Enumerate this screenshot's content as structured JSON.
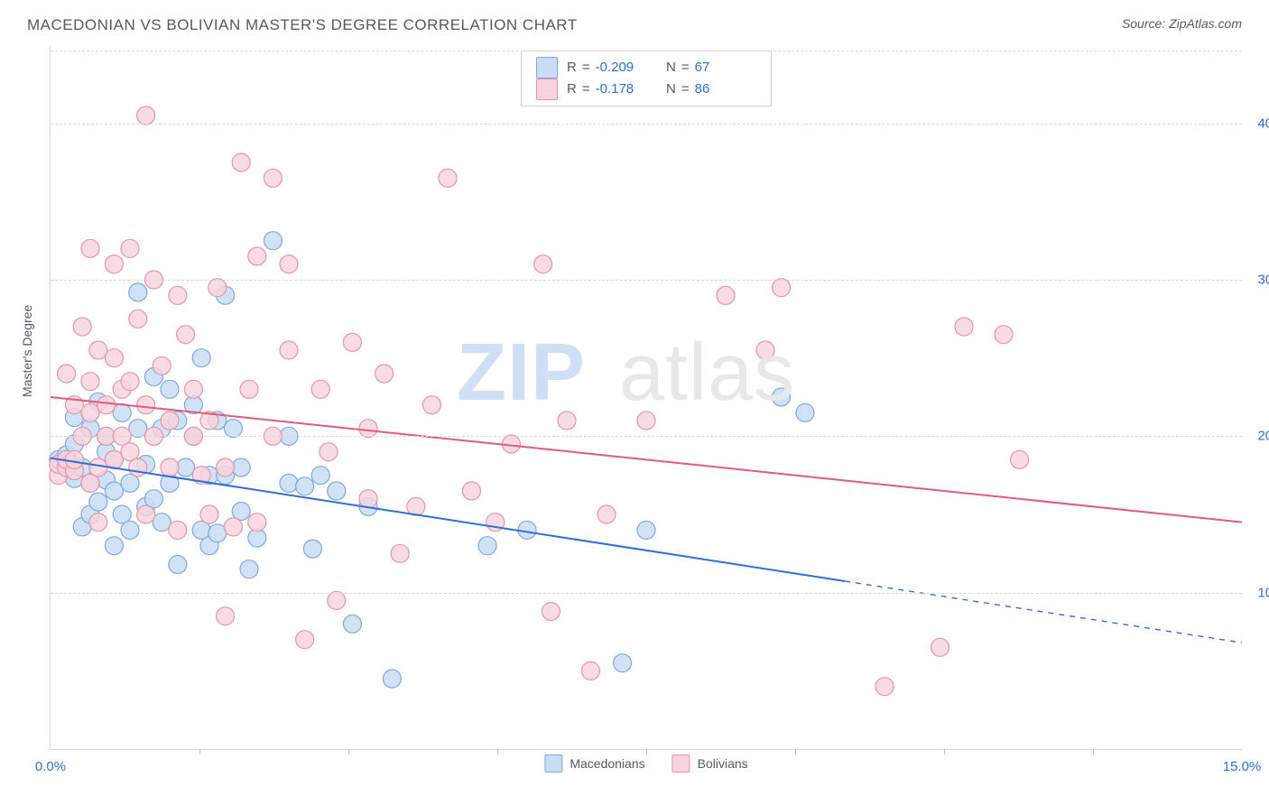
{
  "header": {
    "title": "MACEDONIAN VS BOLIVIAN MASTER'S DEGREE CORRELATION CHART",
    "source_label": "Source: ZipAtlas.com"
  },
  "watermark": {
    "left": "ZIP",
    "right": "atlas"
  },
  "chart": {
    "type": "scatter",
    "ylabel": "Master's Degree",
    "background_color": "#ffffff",
    "grid_color": "#d8d8d8",
    "axis_color": "#d8d8d8",
    "tick_color": "#c0c0c0",
    "axis_value_color": "#2e6fd6",
    "text_color": "#555a60",
    "xlim": [
      0,
      15
    ],
    "ylim": [
      0,
      45
    ],
    "xticks_major": [
      0,
      15
    ],
    "xtick_labels": [
      "0.0%",
      "15.0%"
    ],
    "xticks_minor": [
      1.875,
      3.75,
      5.625,
      7.5,
      9.375,
      11.25,
      13.125
    ],
    "yticks": [
      10,
      20,
      30,
      40
    ],
    "ytick_labels": [
      "10.0%",
      "20.0%",
      "30.0%",
      "40.0%"
    ],
    "legend_bottom": [
      {
        "label": "Macedonians",
        "fill": "#c9ddf4",
        "stroke": "#7da9db"
      },
      {
        "label": "Bolivians",
        "fill": "#f8d3dc",
        "stroke": "#e794aa"
      }
    ],
    "legend_top": [
      {
        "swatch_fill": "#c9ddf4",
        "swatch_stroke": "#7da9db",
        "r": "-0.209",
        "n": "67"
      },
      {
        "swatch_fill": "#f8d3dc",
        "swatch_stroke": "#e794aa",
        "r": "-0.178",
        "n": "86"
      }
    ],
    "legend_labels": {
      "r_prefix": "R",
      "eq": "=",
      "n_prefix": "N"
    },
    "series": [
      {
        "name": "Macedonians",
        "marker_fill": "#c9ddf4",
        "marker_stroke": "#7da9db",
        "marker_opacity": 0.85,
        "marker_r": 10,
        "line_color": "#2e6fd6",
        "line_width": 2.0,
        "trend_solid_end_x": 10.0,
        "trend": {
          "x1": 0,
          "y1": 18.6,
          "x2": 15,
          "y2": 6.8
        },
        "points": [
          [
            0.1,
            18.5
          ],
          [
            0.2,
            18.0
          ],
          [
            0.2,
            18.8
          ],
          [
            0.3,
            17.3
          ],
          [
            0.3,
            19.5
          ],
          [
            0.3,
            21.2
          ],
          [
            0.4,
            18.0
          ],
          [
            0.4,
            14.2
          ],
          [
            0.5,
            20.5
          ],
          [
            0.5,
            17.0
          ],
          [
            0.5,
            15.0
          ],
          [
            0.6,
            15.8
          ],
          [
            0.6,
            22.2
          ],
          [
            0.7,
            19.0
          ],
          [
            0.7,
            20.0
          ],
          [
            0.7,
            17.2
          ],
          [
            0.8,
            13.0
          ],
          [
            0.8,
            16.5
          ],
          [
            0.8,
            18.5
          ],
          [
            0.9,
            15.0
          ],
          [
            0.9,
            21.5
          ],
          [
            1.0,
            17.0
          ],
          [
            1.0,
            14.0
          ],
          [
            1.1,
            20.5
          ],
          [
            1.1,
            29.2
          ],
          [
            1.2,
            15.5
          ],
          [
            1.2,
            18.2
          ],
          [
            1.3,
            16.0
          ],
          [
            1.3,
            23.8
          ],
          [
            1.4,
            20.5
          ],
          [
            1.4,
            14.5
          ],
          [
            1.5,
            17.0
          ],
          [
            1.5,
            23.0
          ],
          [
            1.6,
            21.0
          ],
          [
            1.6,
            11.8
          ],
          [
            1.7,
            18.0
          ],
          [
            1.8,
            22.0
          ],
          [
            1.8,
            20.0
          ],
          [
            1.9,
            25.0
          ],
          [
            1.9,
            14.0
          ],
          [
            2.0,
            17.5
          ],
          [
            2.0,
            13.0
          ],
          [
            2.1,
            21.0
          ],
          [
            2.1,
            13.8
          ],
          [
            2.2,
            17.5
          ],
          [
            2.2,
            29.0
          ],
          [
            2.3,
            20.5
          ],
          [
            2.4,
            15.2
          ],
          [
            2.4,
            18.0
          ],
          [
            2.5,
            11.5
          ],
          [
            2.6,
            13.5
          ],
          [
            2.8,
            32.5
          ],
          [
            3.0,
            20.0
          ],
          [
            3.0,
            17.0
          ],
          [
            3.2,
            16.8
          ],
          [
            3.3,
            12.8
          ],
          [
            3.4,
            17.5
          ],
          [
            3.6,
            16.5
          ],
          [
            3.8,
            8.0
          ],
          [
            4.0,
            15.5
          ],
          [
            4.3,
            4.5
          ],
          [
            5.5,
            13.0
          ],
          [
            6.0,
            14.0
          ],
          [
            7.2,
            5.5
          ],
          [
            7.5,
            14.0
          ],
          [
            9.2,
            22.5
          ],
          [
            9.5,
            21.5
          ]
        ]
      },
      {
        "name": "Bolivians",
        "marker_fill": "#f8d3dc",
        "marker_stroke": "#e794aa",
        "marker_opacity": 0.8,
        "marker_r": 10,
        "line_color": "#e35a7a",
        "line_width": 2.0,
        "trend_solid_end_x": 15.0,
        "trend": {
          "x1": 0,
          "y1": 22.5,
          "x2": 15,
          "y2": 14.5
        },
        "points": [
          [
            0.1,
            17.5
          ],
          [
            0.1,
            18.2
          ],
          [
            0.2,
            18.0
          ],
          [
            0.2,
            18.5
          ],
          [
            0.2,
            24.0
          ],
          [
            0.3,
            17.8
          ],
          [
            0.3,
            22.0
          ],
          [
            0.3,
            18.5
          ],
          [
            0.4,
            20.0
          ],
          [
            0.4,
            27.0
          ],
          [
            0.5,
            21.5
          ],
          [
            0.5,
            23.5
          ],
          [
            0.5,
            17.0
          ],
          [
            0.5,
            32.0
          ],
          [
            0.6,
            18.0
          ],
          [
            0.6,
            25.5
          ],
          [
            0.6,
            14.5
          ],
          [
            0.7,
            20.0
          ],
          [
            0.7,
            22.0
          ],
          [
            0.8,
            25.0
          ],
          [
            0.8,
            31.0
          ],
          [
            0.8,
            18.5
          ],
          [
            0.9,
            23.0
          ],
          [
            0.9,
            20.0
          ],
          [
            1.0,
            32.0
          ],
          [
            1.0,
            19.0
          ],
          [
            1.0,
            23.5
          ],
          [
            1.1,
            27.5
          ],
          [
            1.1,
            18.0
          ],
          [
            1.2,
            40.5
          ],
          [
            1.2,
            22.0
          ],
          [
            1.2,
            15.0
          ],
          [
            1.3,
            30.0
          ],
          [
            1.3,
            20.0
          ],
          [
            1.4,
            24.5
          ],
          [
            1.5,
            21.0
          ],
          [
            1.5,
            18.0
          ],
          [
            1.6,
            29.0
          ],
          [
            1.6,
            14.0
          ],
          [
            1.7,
            26.5
          ],
          [
            1.8,
            20.0
          ],
          [
            1.8,
            23.0
          ],
          [
            1.9,
            17.5
          ],
          [
            2.0,
            15.0
          ],
          [
            2.0,
            21.0
          ],
          [
            2.1,
            29.5
          ],
          [
            2.2,
            18.0
          ],
          [
            2.2,
            8.5
          ],
          [
            2.3,
            14.2
          ],
          [
            2.4,
            37.5
          ],
          [
            2.5,
            23.0
          ],
          [
            2.6,
            14.5
          ],
          [
            2.6,
            31.5
          ],
          [
            2.8,
            20.0
          ],
          [
            2.8,
            36.5
          ],
          [
            3.0,
            25.5
          ],
          [
            3.0,
            31.0
          ],
          [
            3.2,
            7.0
          ],
          [
            3.4,
            23.0
          ],
          [
            3.5,
            19.0
          ],
          [
            3.6,
            9.5
          ],
          [
            3.8,
            26.0
          ],
          [
            4.0,
            20.5
          ],
          [
            4.0,
            16.0
          ],
          [
            4.2,
            24.0
          ],
          [
            4.4,
            12.5
          ],
          [
            4.6,
            15.5
          ],
          [
            4.8,
            22.0
          ],
          [
            5.0,
            36.5
          ],
          [
            5.3,
            16.5
          ],
          [
            5.6,
            14.5
          ],
          [
            5.8,
            19.5
          ],
          [
            6.2,
            31.0
          ],
          [
            6.3,
            8.8
          ],
          [
            6.5,
            21.0
          ],
          [
            6.8,
            5.0
          ],
          [
            7.0,
            15.0
          ],
          [
            7.5,
            21.0
          ],
          [
            8.5,
            29.0
          ],
          [
            9.0,
            25.5
          ],
          [
            9.2,
            29.5
          ],
          [
            10.5,
            4.0
          ],
          [
            11.2,
            6.5
          ],
          [
            11.5,
            27.0
          ],
          [
            12.0,
            26.5
          ],
          [
            12.2,
            18.5
          ]
        ]
      }
    ]
  }
}
